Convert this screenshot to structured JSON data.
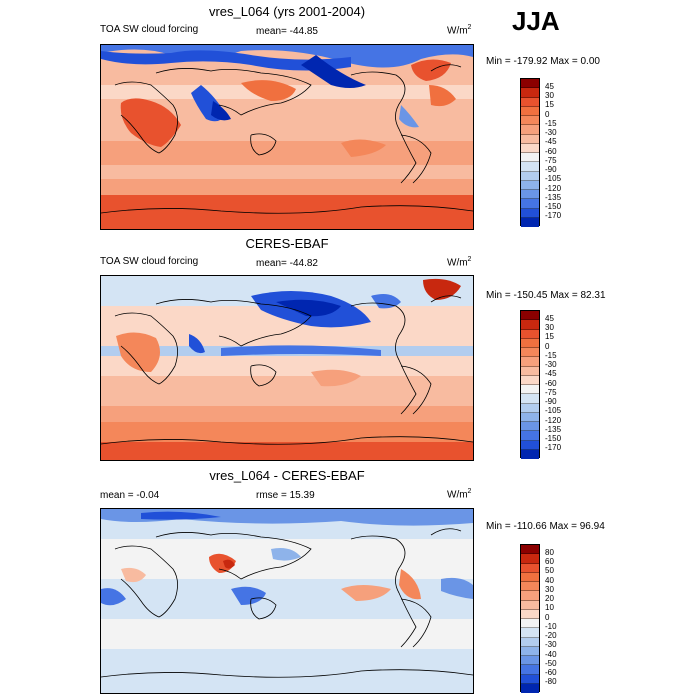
{
  "season": "JJA",
  "panels": [
    {
      "title": "vres_L064 (yrs 2001-2004)",
      "left_label": "TOA SW cloud forcing",
      "center_label": "mean= -44.85",
      "unit_base": "W/m",
      "unit_sup": "2",
      "minmax": "Min = -179.92 Max =   0.00",
      "colorbar": {
        "labels": [
          "45",
          "30",
          "15",
          "0",
          "-15",
          "-30",
          "-45",
          "-60",
          "-75",
          "-90",
          "-105",
          "-120",
          "-135",
          "-150",
          "-170"
        ],
        "colors": [
          "#8b0000",
          "#c8280f",
          "#e8522e",
          "#f0703f",
          "#f4875a",
          "#f6a07c",
          "#f8bba0",
          "#fbd8c7",
          "#f3f3f3",
          "#d4e4f4",
          "#b2cdef",
          "#8eb3ea",
          "#6a95e6",
          "#4574e4",
          "#2150d8",
          "#0026b0"
        ]
      },
      "map_theme": "control"
    },
    {
      "title": "CERES-EBAF",
      "left_label": "TOA SW cloud forcing",
      "center_label": "mean= -44.82",
      "unit_base": "W/m",
      "unit_sup": "2",
      "minmax": "Min = -150.45 Max =  82.31",
      "colorbar": {
        "labels": [
          "45",
          "30",
          "15",
          "0",
          "-15",
          "-30",
          "-45",
          "-60",
          "-75",
          "-90",
          "-105",
          "-120",
          "-135",
          "-150",
          "-170"
        ],
        "colors": [
          "#8b0000",
          "#c8280f",
          "#e8522e",
          "#f0703f",
          "#f4875a",
          "#f6a07c",
          "#f8bba0",
          "#fbd8c7",
          "#f3f3f3",
          "#d4e4f4",
          "#b2cdef",
          "#8eb3ea",
          "#6a95e6",
          "#4574e4",
          "#2150d8",
          "#0026b0"
        ]
      },
      "map_theme": "obs"
    },
    {
      "title": "vres_L064 - CERES-EBAF",
      "left_label": "mean =  -0.04",
      "center_label": "rmse =  15.39",
      "unit_base": "W/m",
      "unit_sup": "2",
      "minmax": "Min = -110.66 Max =  96.94",
      "colorbar": {
        "labels": [
          "80",
          "60",
          "50",
          "40",
          "30",
          "20",
          "10",
          "0",
          "-10",
          "-20",
          "-30",
          "-40",
          "-50",
          "-60",
          "-80"
        ],
        "colors": [
          "#8b0000",
          "#c8280f",
          "#e8522e",
          "#f0703f",
          "#f4875a",
          "#f6a07c",
          "#f8bba0",
          "#fbd8c7",
          "#f3f3f3",
          "#d4e4f4",
          "#b2cdef",
          "#8eb3ea",
          "#6a95e6",
          "#4574e4",
          "#2150d8",
          "#0026b0"
        ]
      },
      "map_theme": "diff"
    }
  ]
}
